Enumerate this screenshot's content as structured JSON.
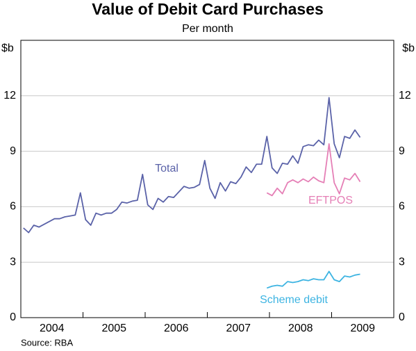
{
  "chart_data": {
    "type": "line",
    "title": "Value of Debit Card Purchases",
    "subtitle": "Per month",
    "ylabel": "$b",
    "y2label": "$b",
    "source": "Source: RBA",
    "x": [
      "2004-01",
      "2004-02",
      "2004-03",
      "2004-04",
      "2004-05",
      "2004-06",
      "2004-07",
      "2004-08",
      "2004-09",
      "2004-10",
      "2004-11",
      "2004-12",
      "2005-01",
      "2005-02",
      "2005-03",
      "2005-04",
      "2005-05",
      "2005-06",
      "2005-07",
      "2005-08",
      "2005-09",
      "2005-10",
      "2005-11",
      "2005-12",
      "2006-01",
      "2006-02",
      "2006-03",
      "2006-04",
      "2006-05",
      "2006-06",
      "2006-07",
      "2006-08",
      "2006-09",
      "2006-10",
      "2006-11",
      "2006-12",
      "2007-01",
      "2007-02",
      "2007-03",
      "2007-04",
      "2007-05",
      "2007-06",
      "2007-07",
      "2007-08",
      "2007-09",
      "2007-10",
      "2007-11",
      "2007-12",
      "2008-01",
      "2008-02",
      "2008-03",
      "2008-04",
      "2008-05",
      "2008-06",
      "2008-07",
      "2008-08",
      "2008-09",
      "2008-10",
      "2008-11",
      "2008-12",
      "2009-01",
      "2009-02",
      "2009-03",
      "2009-04",
      "2009-05",
      "2009-06"
    ],
    "series": [
      {
        "name": "Total",
        "color": "#5a62a8",
        "values": [
          4.85,
          4.6,
          5.0,
          4.9,
          5.05,
          5.2,
          5.35,
          5.35,
          5.45,
          5.5,
          5.55,
          6.75,
          5.3,
          5.0,
          5.65,
          5.55,
          5.65,
          5.65,
          5.85,
          6.25,
          6.2,
          6.3,
          6.35,
          7.75,
          6.1,
          5.85,
          6.45,
          6.25,
          6.55,
          6.5,
          6.8,
          7.1,
          7.0,
          7.05,
          7.2,
          8.5,
          7.0,
          6.45,
          7.3,
          6.85,
          7.35,
          7.25,
          7.6,
          8.15,
          7.85,
          8.3,
          8.3,
          9.8,
          8.1,
          7.8,
          8.35,
          8.3,
          8.75,
          8.35,
          9.25,
          9.35,
          9.3,
          9.6,
          9.35,
          11.9,
          9.4,
          8.65,
          9.8,
          9.7,
          10.15,
          9.75
        ]
      },
      {
        "name": "EFTPOS",
        "color": "#e57fb6",
        "values": [
          null,
          null,
          null,
          null,
          null,
          null,
          null,
          null,
          null,
          null,
          null,
          null,
          null,
          null,
          null,
          null,
          null,
          null,
          null,
          null,
          null,
          null,
          null,
          null,
          null,
          null,
          null,
          null,
          null,
          null,
          null,
          null,
          null,
          null,
          null,
          null,
          null,
          null,
          null,
          null,
          null,
          null,
          null,
          null,
          null,
          null,
          null,
          6.75,
          6.6,
          7.0,
          6.7,
          7.3,
          7.45,
          7.3,
          7.5,
          7.35,
          7.6,
          7.4,
          7.3,
          9.4,
          7.3,
          6.7,
          7.55,
          7.45,
          7.8,
          7.35
        ]
      },
      {
        "name": "Scheme debit",
        "color": "#3db4e2",
        "values": [
          null,
          null,
          null,
          null,
          null,
          null,
          null,
          null,
          null,
          null,
          null,
          null,
          null,
          null,
          null,
          null,
          null,
          null,
          null,
          null,
          null,
          null,
          null,
          null,
          null,
          null,
          null,
          null,
          null,
          null,
          null,
          null,
          null,
          null,
          null,
          null,
          null,
          null,
          null,
          null,
          null,
          null,
          null,
          null,
          null,
          null,
          null,
          1.6,
          1.7,
          1.75,
          1.7,
          1.95,
          1.9,
          1.95,
          2.05,
          2.0,
          2.1,
          2.05,
          2.05,
          2.5,
          2.05,
          1.95,
          2.25,
          2.2,
          2.3,
          2.35
        ]
      }
    ],
    "xlim": [
      2004,
      2010
    ],
    "xticks": [
      {
        "value": 2004.5,
        "label": "2004"
      },
      {
        "value": 2005.5,
        "label": "2005"
      },
      {
        "value": 2006.5,
        "label": "2006"
      },
      {
        "value": 2007.5,
        "label": "2007"
      },
      {
        "value": 2008.5,
        "label": "2008"
      },
      {
        "value": 2009.5,
        "label": "2009"
      }
    ],
    "xtick_marks": [
      2005,
      2006,
      2007,
      2008,
      2009
    ],
    "ylim": [
      0,
      15
    ],
    "yticks": [
      0,
      3,
      6,
      9,
      12
    ],
    "y2lim": [
      0,
      15
    ],
    "y2ticks": [
      0,
      3,
      6,
      9,
      12
    ],
    "grid": true
  }
}
